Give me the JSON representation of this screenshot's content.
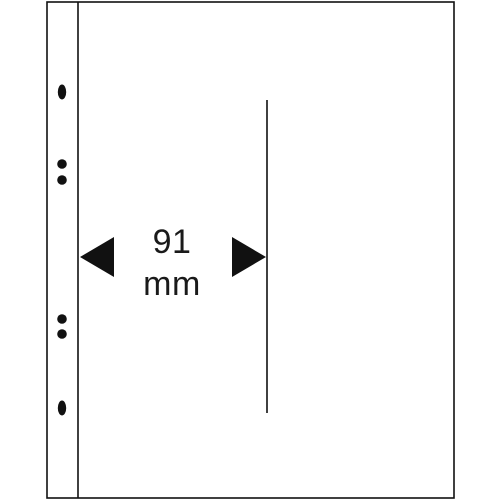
{
  "dimension": {
    "value": "91",
    "unit": "mm"
  },
  "colors": {
    "stroke": "#111111",
    "background": "#ffffff"
  }
}
